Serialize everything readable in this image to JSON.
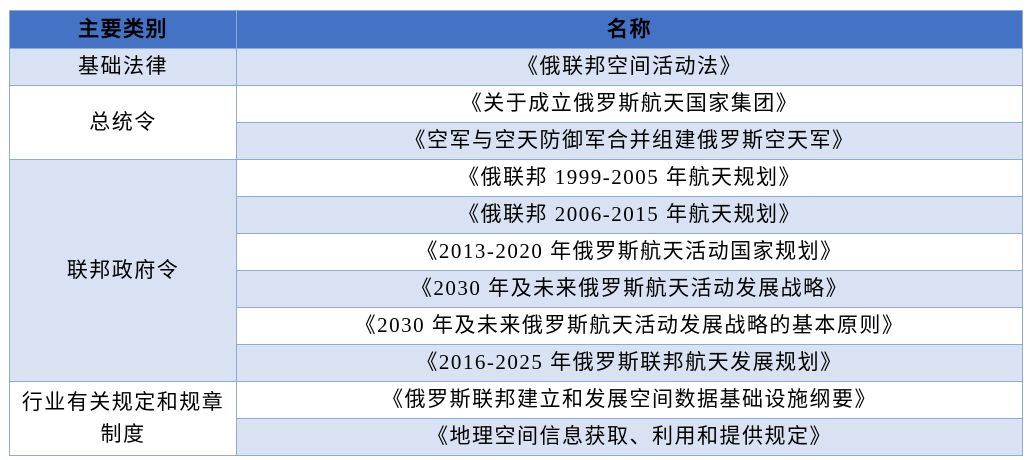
{
  "table": {
    "colors": {
      "header_bg": "#4472C4",
      "band_bg": "#D9E2F3",
      "plain_bg": "#FFFFFF",
      "border": "#8EAADB",
      "text": "#000000"
    },
    "headers": {
      "category": "主要类别",
      "name": "名称"
    },
    "groups": [
      {
        "category": "基础法律",
        "rows": [
          "《俄联邦空间活动法》"
        ]
      },
      {
        "category": "总统令",
        "rows": [
          "《关于成立俄罗斯航天国家集团》",
          "《空军与空天防御军合并组建俄罗斯空天军》"
        ]
      },
      {
        "category": "联邦政府令",
        "rows": [
          "《俄联邦 1999-2005 年航天规划》",
          "《俄联邦 2006-2015 年航天规划》",
          "《2013-2020 年俄罗斯航天活动国家规划》",
          "《2030 年及未来俄罗斯航天活动发展战略》",
          "《2030 年及未来俄罗斯航天活动发展战略的基本原则》",
          "《2016-2025 年俄罗斯联邦航天发展规划》"
        ]
      },
      {
        "category": "行业有关规定和规章制度",
        "rows": [
          "《俄罗斯联邦建立和发展空间数据基础设施纲要》",
          "《地理空间信息获取、利用和提供规定》"
        ]
      }
    ]
  }
}
